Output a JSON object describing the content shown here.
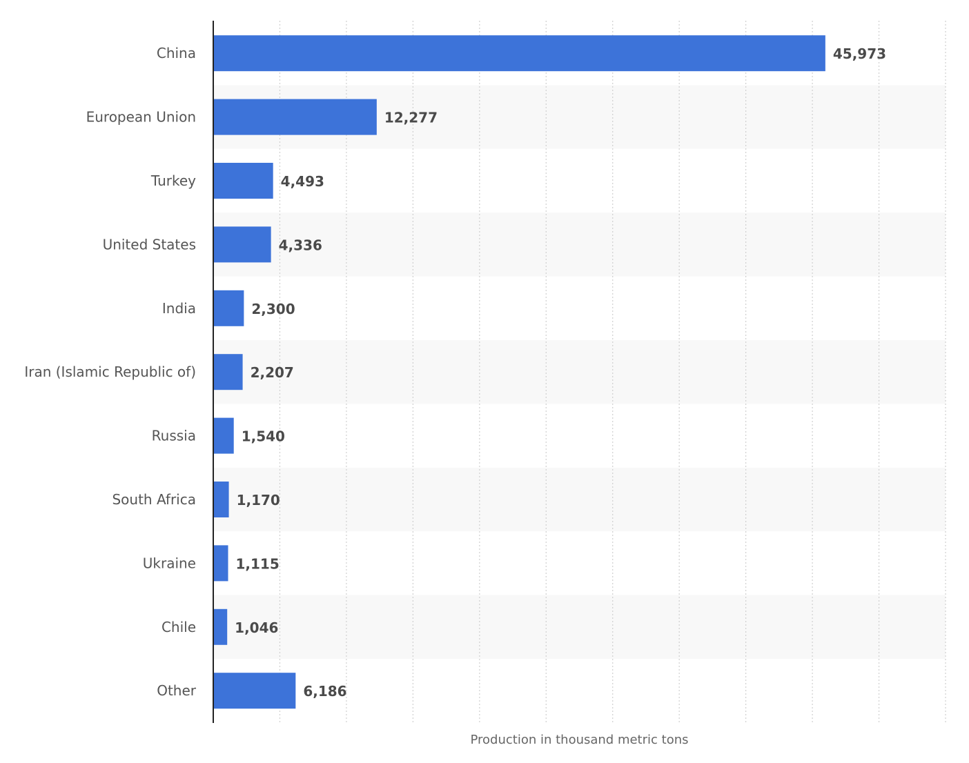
{
  "chart_data": {
    "type": "bar",
    "orientation": "horizontal",
    "categories": [
      "China",
      "European Union",
      "Turkey",
      "United States",
      "India",
      "Iran (Islamic Republic of)",
      "Russia",
      "South Africa",
      "Ukraine",
      "Chile",
      "Other"
    ],
    "values": [
      45973,
      12277,
      4493,
      4336,
      2300,
      2207,
      1540,
      1170,
      1115,
      1046,
      6186
    ],
    "value_labels": [
      "45,973",
      "12,277",
      "4,493",
      "4,336",
      "2,300",
      "2,207",
      "1,540",
      "1,170",
      "1,115",
      "1,046",
      "6,186"
    ],
    "title": "",
    "xlabel": "Production in thousand metric tons",
    "ylabel": "",
    "xlim": [
      0,
      55000
    ],
    "grid": true,
    "legend": "none",
    "bar_color": "#3d73d9",
    "band_color": "#f8f8f8"
  }
}
